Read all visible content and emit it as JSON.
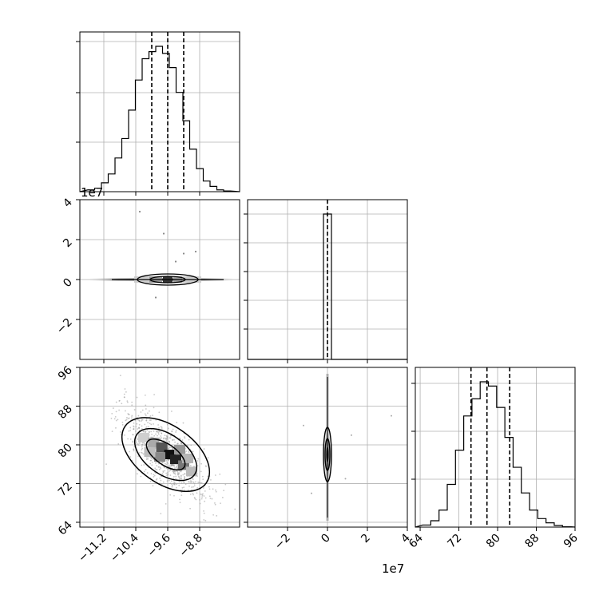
{
  "chart_data": [
    {
      "panel": "marginal-x",
      "type": "histogram",
      "xlim": [
        -11.8,
        -7.8
      ],
      "grid": true,
      "x_ticks": [
        -11.2,
        -10.4,
        -9.6,
        -8.8
      ],
      "bin_edges": [
        -11.6,
        -11.43,
        -11.26,
        -11.09,
        -10.92,
        -10.75,
        -10.58,
        -10.41,
        -10.24,
        -10.07,
        -9.9,
        -9.73,
        -9.56,
        -9.39,
        -9.22,
        -9.05,
        -8.88,
        -8.71,
        -8.54,
        -8.37,
        -8.2,
        -8.03
      ],
      "counts": [
        0.5,
        1.0,
        2.5,
        5.0,
        9.5,
        15.0,
        23.0,
        31.5,
        37.5,
        39.5,
        41.0,
        39.0,
        35.0,
        28.0,
        20.0,
        12.0,
        6.5,
        3.0,
        1.5,
        0.5,
        0.2
      ],
      "quantiles": [
        -10.0,
        -9.6,
        -9.2
      ]
    },
    {
      "panel": "marginal-y",
      "type": "histogram",
      "xlim": [
        -4.0,
        4.0
      ],
      "offset_multiplier": "1e7",
      "grid": true,
      "x_ticks": [
        -2,
        0,
        2,
        4
      ],
      "x_tick_labels": [
        "−2",
        "0",
        "2",
        "4"
      ],
      "bin_edges": [
        -0.2,
        0.2
      ],
      "counts": [
        1.0
      ],
      "quantiles": [
        -0.01,
        0.0,
        0.01
      ]
    },
    {
      "panel": "marginal-z",
      "type": "histogram",
      "xlim": [
        63,
        96
      ],
      "grid": true,
      "x_ticks": [
        64,
        72,
        80,
        88,
        96
      ],
      "bin_edges": [
        64.5,
        66.2,
        67.9,
        69.6,
        71.3,
        73.0,
        74.7,
        76.4,
        78.1,
        79.8,
        81.5,
        83.2,
        84.9,
        86.6,
        88.3,
        90.0,
        91.7,
        93.4,
        95.1
      ],
      "counts": [
        0.5,
        1.5,
        4.0,
        10.0,
        18.0,
        26.0,
        30.0,
        34.0,
        33.0,
        28.0,
        21.0,
        14.0,
        8.0,
        4.0,
        2.0,
        1.0,
        0.4,
        0.1
      ],
      "quantiles": [
        74.5,
        77.8,
        82.5
      ]
    },
    {
      "panel": "joint-x-y",
      "type": "contour",
      "xlim": [
        -11.8,
        -7.8
      ],
      "ylim": [
        -4.0,
        4.0
      ],
      "y_offset_multiplier": "1e7",
      "y_ticks": [
        -2,
        0,
        2,
        4
      ],
      "y_tick_labels": [
        "−2",
        "0",
        "2",
        "4"
      ],
      "center": [
        -9.6,
        0.0
      ],
      "contour_half_widths": [
        [
          0.55,
          0.3
        ],
        [
          0.95,
          0.55
        ],
        [
          1.4,
          0.08
        ]
      ]
    },
    {
      "panel": "joint-x-z",
      "type": "contour",
      "xlim": [
        -11.8,
        -7.8
      ],
      "ylim": [
        63,
        96
      ],
      "x_ticks": [
        -11.2,
        -10.4,
        -9.6,
        -8.8
      ],
      "x_tick_labels": [
        "−11.2",
        "−10.4",
        "−9.6",
        "−8.8"
      ],
      "y_ticks": [
        64,
        72,
        80,
        88,
        96
      ],
      "center": [
        -9.65,
        78.0
      ],
      "correlation": "negative"
    },
    {
      "panel": "joint-y-z",
      "type": "contour",
      "xlim": [
        -4.0,
        4.0
      ],
      "ylim": [
        63,
        96
      ],
      "x_offset_multiplier": "1e7",
      "x_ticks": [
        -2,
        0,
        2,
        4
      ],
      "x_tick_labels": [
        "−2",
        "0",
        "2",
        "4"
      ],
      "center": [
        0.0,
        78.0
      ]
    }
  ],
  "labels": {
    "offset_y": "1e7",
    "offset_x": "1e7"
  }
}
